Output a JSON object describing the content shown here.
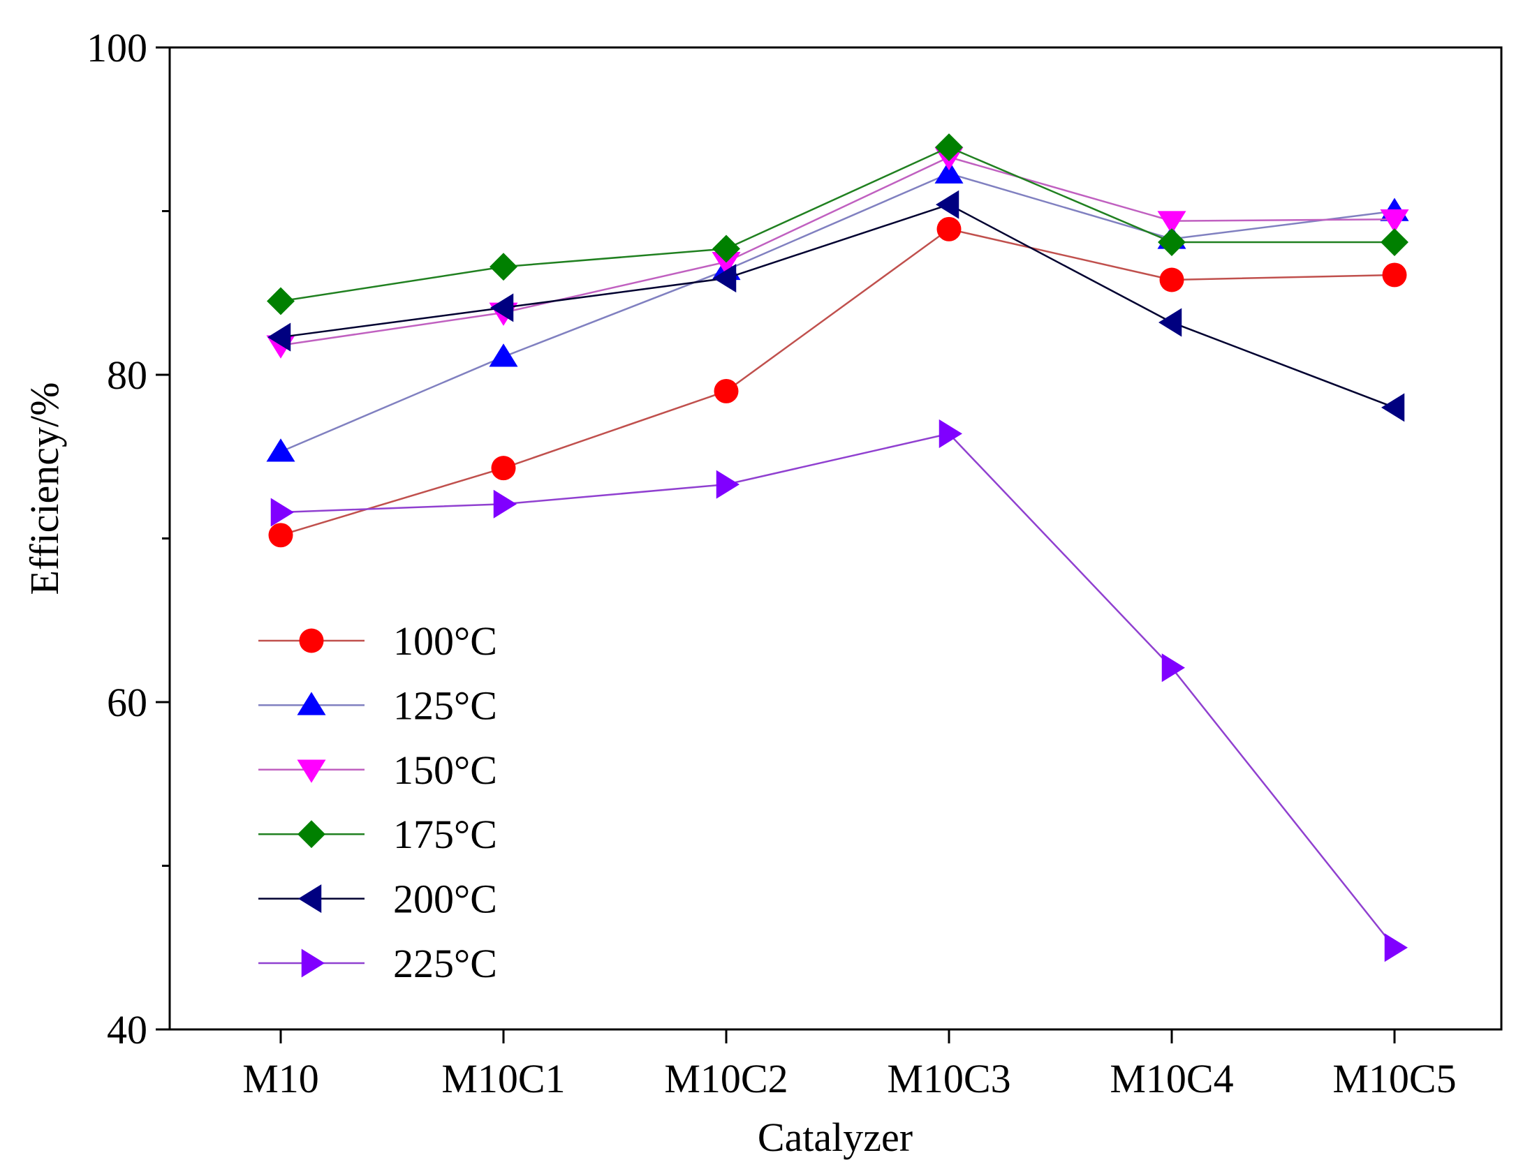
{
  "chart_data": {
    "type": "line",
    "title": "",
    "xlabel": "Catalyzer",
    "ylabel": "Efficiency/%",
    "categories": [
      "M10",
      "M10C1",
      "M10C2",
      "M10C3",
      "M10C4",
      "M10C5"
    ],
    "ylim": [
      40,
      100
    ],
    "yticks": [
      40,
      60,
      80,
      100
    ],
    "grid": false,
    "legend_position": "bottom-left",
    "series": [
      {
        "name": "100°C",
        "marker": "circle",
        "color": "#ff0000",
        "line_color": "#c0504d",
        "values": [
          70.2,
          74.3,
          79.0,
          88.9,
          85.8,
          86.1
        ]
      },
      {
        "name": "125°C",
        "marker": "triangle-up",
        "color": "#0000ff",
        "line_color": "#8080c0",
        "values": [
          75.3,
          81.1,
          86.4,
          92.3,
          88.3,
          90.0
        ]
      },
      {
        "name": "150°C",
        "marker": "triangle-down",
        "color": "#ff00ff",
        "line_color": "#c060c0",
        "values": [
          81.8,
          83.8,
          86.9,
          93.3,
          89.4,
          89.5
        ]
      },
      {
        "name": "175°C",
        "marker": "diamond",
        "color": "#008000",
        "line_color": "#208020",
        "values": [
          84.5,
          86.6,
          87.7,
          93.9,
          88.1,
          88.1
        ]
      },
      {
        "name": "200°C",
        "marker": "triangle-left",
        "color": "#000080",
        "line_color": "#000030",
        "values": [
          82.3,
          84.1,
          85.9,
          90.4,
          83.2,
          78.0
        ]
      },
      {
        "name": "225°C",
        "marker": "triangle-right",
        "color": "#8000ff",
        "line_color": "#9040d0",
        "values": [
          71.6,
          72.1,
          73.3,
          76.4,
          62.1,
          45.0
        ]
      }
    ]
  }
}
